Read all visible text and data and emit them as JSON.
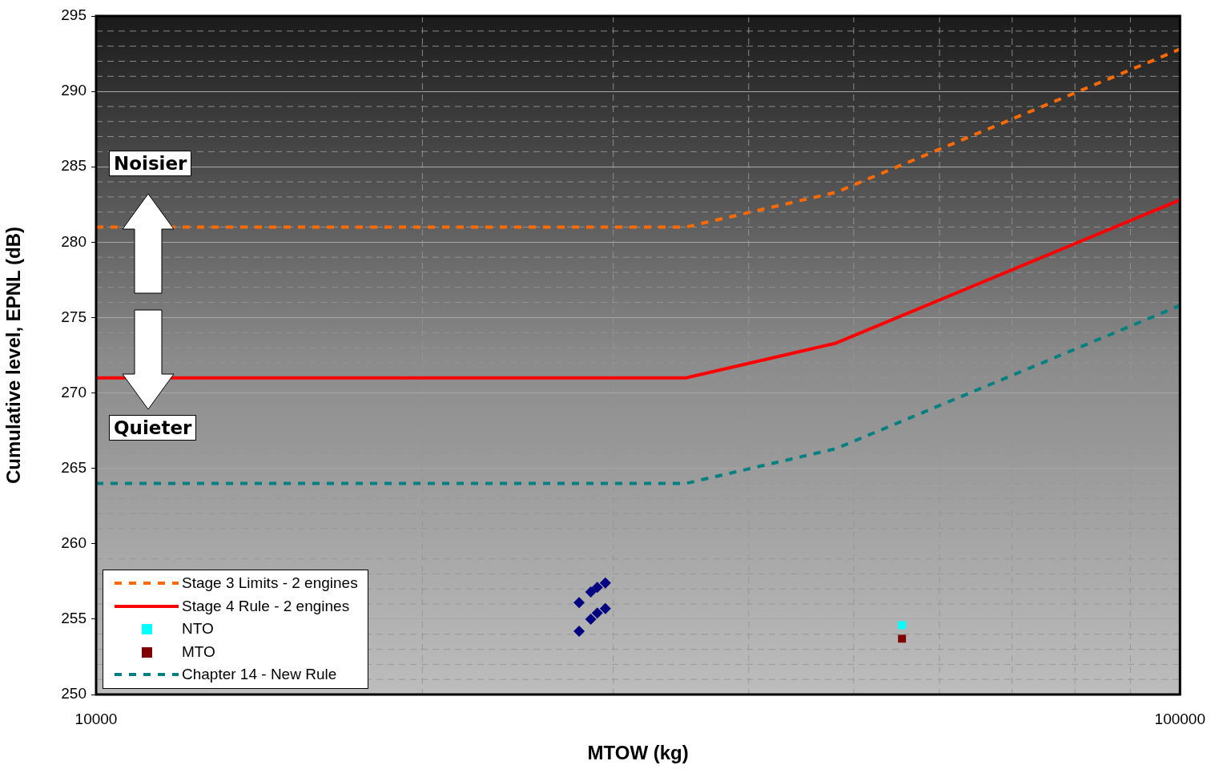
{
  "chart_data": {
    "type": "line",
    "xlabel": "MTOW (kg)",
    "ylabel": "Cumulative level, EPNL (dB)",
    "log": "x",
    "grid": true,
    "legend": "bottom left",
    "xlim": [
      10000,
      100000
    ],
    "xticks": [
      10000,
      100000
    ],
    "ylim": [
      250,
      295
    ],
    "yticks": [
      250,
      255,
      260,
      265,
      270,
      275,
      280,
      285,
      290,
      295
    ],
    "annotations": [
      "Noisier",
      "Quieter"
    ],
    "series": [
      {
        "name": "Stage 3 Limits - 2 engines",
        "line_style": "dashed",
        "marker": "none",
        "color": "#ff6a00",
        "x": [
          10000,
          35000,
          48125,
          100000
        ],
        "values": [
          281,
          281,
          283.3,
          292.8
        ]
      },
      {
        "name": "Stage 4 Rule - 2 engines",
        "line_style": "solid",
        "marker": "none",
        "color": "#ff0000",
        "x": [
          10000,
          35000,
          48125,
          100000
        ],
        "values": [
          271,
          271,
          273.3,
          282.8
        ]
      },
      {
        "name": "NTO",
        "type": "scatter",
        "marker": "square",
        "color": "#00ffff",
        "x": [
          55400
        ],
        "values": [
          254.6
        ]
      },
      {
        "name": "MTO",
        "type": "scatter",
        "marker": "square",
        "color": "#800000",
        "x": [
          55400
        ],
        "values": [
          253.7
        ]
      },
      {
        "name": "Chapter 14 - New Rule",
        "line_style": "dashed",
        "marker": "none",
        "color": "#008080",
        "x": [
          10000,
          35000,
          48125,
          100000
        ],
        "values": [
          264,
          264,
          266.3,
          275.8
        ]
      },
      {
        "type": "scatter",
        "marker": "diamond",
        "color": "#000080",
        "x": [
          27900,
          28600,
          29000,
          29500,
          27900,
          28600,
          29000,
          29500
        ],
        "values": [
          256.1,
          256.8,
          257.1,
          257.4,
          254.2,
          255.0,
          255.4,
          255.7
        ]
      }
    ]
  }
}
